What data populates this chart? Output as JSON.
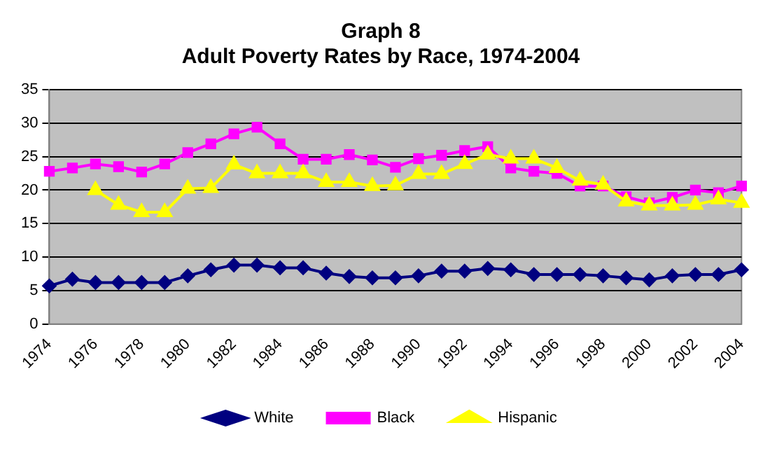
{
  "chart_data": {
    "type": "line",
    "title": "Graph 8\nAdult Poverty Rates by Race, 1974-2004",
    "categories": [
      "1974",
      null,
      "1976",
      null,
      "1978",
      null,
      "1980",
      null,
      "1982",
      null,
      "1984",
      null,
      "1986",
      null,
      "1988",
      null,
      "1990",
      null,
      "1992",
      null,
      "1994",
      null,
      "1996",
      null,
      "1998",
      null,
      "2000",
      null,
      "2002",
      null,
      "2004"
    ],
    "series": [
      {
        "name": "White",
        "color": "#000080",
        "marker": "diamond",
        "values": [
          5.7,
          6.7,
          6.2,
          6.2,
          6.2,
          6.2,
          7.2,
          8.1,
          8.8,
          8.8,
          8.4,
          8.4,
          7.6,
          7.1,
          6.9,
          6.9,
          7.2,
          7.9,
          7.9,
          8.3,
          8.1,
          7.4,
          7.4,
          7.4,
          7.2,
          6.9,
          6.6,
          7.2,
          7.4,
          7.4,
          8.1
        ]
      },
      {
        "name": "Black",
        "color": "#ff00ff",
        "marker": "square",
        "values": [
          22.8,
          23.3,
          23.9,
          23.5,
          22.7,
          23.9,
          25.6,
          26.9,
          28.4,
          29.4,
          26.9,
          24.6,
          24.6,
          25.3,
          24.5,
          23.4,
          24.7,
          25.2,
          25.9,
          26.5,
          23.3,
          22.8,
          22.5,
          20.6,
          20.6,
          19.0,
          18.1,
          18.9,
          20.0,
          19.6,
          20.6
        ]
      },
      {
        "name": "Hispanic",
        "color": "#ffff00",
        "marker": "triangle",
        "values": [
          null,
          null,
          20.0,
          17.8,
          16.7,
          16.7,
          20.2,
          20.3,
          23.8,
          22.5,
          22.5,
          22.5,
          21.2,
          21.2,
          20.6,
          20.7,
          22.4,
          22.4,
          23.9,
          25.3,
          24.7,
          24.7,
          23.3,
          21.4,
          20.8,
          18.3,
          17.7,
          17.7,
          17.8,
          18.6,
          18.1
        ]
      }
    ],
    "ylim": [
      0,
      35
    ],
    "yticks": [
      0,
      5,
      10,
      15,
      20,
      25,
      30,
      35
    ],
    "grid": "y",
    "legend": "bottom",
    "line_style": "solid"
  }
}
